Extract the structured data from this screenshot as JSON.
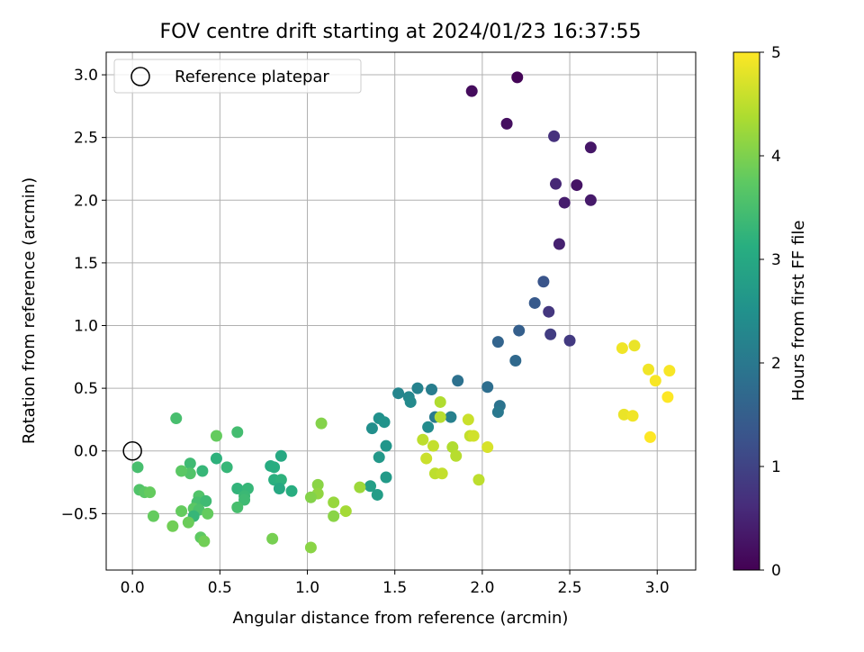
{
  "chart_data": {
    "type": "scatter",
    "title": "FOV centre drift starting at 2024/01/23 16:37:55",
    "xlabel": "Angular distance from reference (arcmin)",
    "ylabel": "Rotation from reference (arcmin)",
    "xlim": [
      -0.15,
      3.22
    ],
    "ylim": [
      -0.95,
      3.18
    ],
    "xticks": [
      0.0,
      0.5,
      1.0,
      1.5,
      2.0,
      2.5,
      3.0
    ],
    "xtick_labels": [
      "0.0",
      "0.5",
      "1.0",
      "1.5",
      "2.0",
      "2.5",
      "3.0"
    ],
    "yticks": [
      -0.5,
      0.0,
      0.5,
      1.0,
      1.5,
      2.0,
      2.5,
      3.0
    ],
    "ytick_labels": [
      "−0.5",
      "0.0",
      "0.5",
      "1.0",
      "1.5",
      "2.0",
      "2.5",
      "3.0"
    ],
    "grid": true,
    "legend": {
      "placement": "top-left",
      "entries": [
        "Reference platepar"
      ]
    },
    "reference_point": {
      "x": 0.0,
      "y": 0.0
    },
    "colorbar": {
      "label": "Hours from first FF file",
      "colormap": "viridis",
      "range": [
        0,
        5
      ],
      "ticks": [
        0,
        1,
        2,
        3,
        4,
        5
      ],
      "tick_labels": [
        "0",
        "1",
        "2",
        "3",
        "4",
        "5"
      ]
    },
    "points": [
      {
        "x": 2.2,
        "y": 2.98,
        "h": 0.05
      },
      {
        "x": 1.94,
        "y": 2.87,
        "h": 0.15
      },
      {
        "x": 2.14,
        "y": 2.61,
        "h": 0.2
      },
      {
        "x": 2.41,
        "y": 2.51,
        "h": 0.7
      },
      {
        "x": 2.62,
        "y": 2.42,
        "h": 0.3
      },
      {
        "x": 2.42,
        "y": 2.13,
        "h": 0.55
      },
      {
        "x": 2.54,
        "y": 2.12,
        "h": 0.25
      },
      {
        "x": 2.47,
        "y": 1.98,
        "h": 0.4
      },
      {
        "x": 2.62,
        "y": 2.0,
        "h": 0.35
      },
      {
        "x": 2.44,
        "y": 1.65,
        "h": 0.45
      },
      {
        "x": 2.35,
        "y": 1.35,
        "h": 1.3
      },
      {
        "x": 2.3,
        "y": 1.18,
        "h": 1.4
      },
      {
        "x": 2.38,
        "y": 1.11,
        "h": 0.8
      },
      {
        "x": 2.21,
        "y": 0.96,
        "h": 1.5
      },
      {
        "x": 2.39,
        "y": 0.93,
        "h": 0.9
      },
      {
        "x": 2.5,
        "y": 0.88,
        "h": 0.85
      },
      {
        "x": 2.09,
        "y": 0.87,
        "h": 1.6
      },
      {
        "x": 2.19,
        "y": 0.72,
        "h": 1.7
      },
      {
        "x": 2.03,
        "y": 0.51,
        "h": 1.8
      },
      {
        "x": 1.86,
        "y": 0.56,
        "h": 1.85
      },
      {
        "x": 2.1,
        "y": 0.36,
        "h": 1.9
      },
      {
        "x": 2.09,
        "y": 0.31,
        "h": 2.0
      },
      {
        "x": 1.71,
        "y": 0.49,
        "h": 2.1
      },
      {
        "x": 1.63,
        "y": 0.5,
        "h": 2.2
      },
      {
        "x": 1.52,
        "y": 0.46,
        "h": 2.25
      },
      {
        "x": 1.58,
        "y": 0.43,
        "h": 2.3
      },
      {
        "x": 1.59,
        "y": 0.39,
        "h": 2.35
      },
      {
        "x": 1.73,
        "y": 0.27,
        "h": 2.05
      },
      {
        "x": 1.82,
        "y": 0.27,
        "h": 2.15
      },
      {
        "x": 1.69,
        "y": 0.19,
        "h": 2.4
      },
      {
        "x": 1.41,
        "y": 0.26,
        "h": 2.5
      },
      {
        "x": 1.44,
        "y": 0.23,
        "h": 2.55
      },
      {
        "x": 1.37,
        "y": 0.18,
        "h": 2.45
      },
      {
        "x": 1.45,
        "y": 0.04,
        "h": 2.6
      },
      {
        "x": 1.41,
        "y": -0.05,
        "h": 2.65
      },
      {
        "x": 1.45,
        "y": -0.21,
        "h": 2.7
      },
      {
        "x": 1.36,
        "y": -0.28,
        "h": 2.8
      },
      {
        "x": 1.4,
        "y": -0.35,
        "h": 2.75
      },
      {
        "x": 0.85,
        "y": -0.04,
        "h": 3.0
      },
      {
        "x": 0.79,
        "y": -0.12,
        "h": 3.05
      },
      {
        "x": 0.81,
        "y": -0.13,
        "h": 3.1
      },
      {
        "x": 0.81,
        "y": -0.23,
        "h": 3.15
      },
      {
        "x": 0.85,
        "y": -0.23,
        "h": 3.2
      },
      {
        "x": 0.84,
        "y": -0.3,
        "h": 3.0
      },
      {
        "x": 0.91,
        "y": -0.32,
        "h": 3.1
      },
      {
        "x": 0.6,
        "y": -0.3,
        "h": 3.25
      },
      {
        "x": 0.66,
        "y": -0.3,
        "h": 3.3
      },
      {
        "x": 0.64,
        "y": -0.36,
        "h": 3.35
      },
      {
        "x": 0.64,
        "y": -0.39,
        "h": 3.4
      },
      {
        "x": 0.6,
        "y": -0.45,
        "h": 3.5
      },
      {
        "x": 0.6,
        "y": 0.15,
        "h": 3.45
      },
      {
        "x": 0.48,
        "y": -0.06,
        "h": 3.2
      },
      {
        "x": 0.54,
        "y": -0.13,
        "h": 3.3
      },
      {
        "x": 0.33,
        "y": -0.1,
        "h": 3.4
      },
      {
        "x": 0.33,
        "y": -0.18,
        "h": 3.6
      },
      {
        "x": 0.4,
        "y": -0.16,
        "h": 3.3
      },
      {
        "x": 0.28,
        "y": -0.16,
        "h": 3.7
      },
      {
        "x": 0.25,
        "y": 0.26,
        "h": 3.5
      },
      {
        "x": 0.48,
        "y": 0.12,
        "h": 3.8
      },
      {
        "x": 0.38,
        "y": -0.36,
        "h": 3.6
      },
      {
        "x": 0.37,
        "y": -0.41,
        "h": 3.5
      },
      {
        "x": 0.42,
        "y": -0.4,
        "h": 3.4
      },
      {
        "x": 0.35,
        "y": -0.46,
        "h": 3.7
      },
      {
        "x": 0.38,
        "y": -0.47,
        "h": 3.55
      },
      {
        "x": 0.35,
        "y": -0.52,
        "h": 3.3
      },
      {
        "x": 0.43,
        "y": -0.5,
        "h": 3.8
      },
      {
        "x": 0.28,
        "y": -0.48,
        "h": 3.8
      },
      {
        "x": 0.32,
        "y": -0.57,
        "h": 3.85
      },
      {
        "x": 0.39,
        "y": -0.69,
        "h": 3.75
      },
      {
        "x": 0.41,
        "y": -0.72,
        "h": 3.9
      },
      {
        "x": 0.23,
        "y": -0.6,
        "h": 3.9
      },
      {
        "x": 0.12,
        "y": -0.52,
        "h": 3.8
      },
      {
        "x": 0.03,
        "y": -0.13,
        "h": 3.5
      },
      {
        "x": 0.04,
        "y": -0.31,
        "h": 3.6
      },
      {
        "x": 0.07,
        "y": -0.33,
        "h": 3.7
      },
      {
        "x": 0.1,
        "y": -0.33,
        "h": 3.8
      },
      {
        "x": 0.8,
        "y": -0.7,
        "h": 3.95
      },
      {
        "x": 1.02,
        "y": -0.77,
        "h": 4.1
      },
      {
        "x": 1.08,
        "y": 0.22,
        "h": 4.05
      },
      {
        "x": 1.06,
        "y": -0.27,
        "h": 4.1
      },
      {
        "x": 1.06,
        "y": -0.34,
        "h": 4.15
      },
      {
        "x": 1.02,
        "y": -0.37,
        "h": 4.05
      },
      {
        "x": 1.15,
        "y": -0.41,
        "h": 4.2
      },
      {
        "x": 1.15,
        "y": -0.52,
        "h": 4.1
      },
      {
        "x": 1.22,
        "y": -0.48,
        "h": 4.3
      },
      {
        "x": 1.3,
        "y": -0.29,
        "h": 4.25
      },
      {
        "x": 1.76,
        "y": 0.39,
        "h": 4.4
      },
      {
        "x": 1.76,
        "y": 0.27,
        "h": 4.45
      },
      {
        "x": 1.66,
        "y": 0.09,
        "h": 4.5
      },
      {
        "x": 1.72,
        "y": 0.04,
        "h": 4.55
      },
      {
        "x": 1.68,
        "y": -0.06,
        "h": 4.6
      },
      {
        "x": 1.73,
        "y": -0.18,
        "h": 4.5
      },
      {
        "x": 1.77,
        "y": -0.18,
        "h": 4.55
      },
      {
        "x": 1.83,
        "y": 0.03,
        "h": 4.4
      },
      {
        "x": 1.85,
        "y": -0.04,
        "h": 4.45
      },
      {
        "x": 1.92,
        "y": 0.25,
        "h": 4.6
      },
      {
        "x": 1.93,
        "y": 0.12,
        "h": 4.55
      },
      {
        "x": 1.95,
        "y": 0.12,
        "h": 4.65
      },
      {
        "x": 1.98,
        "y": -0.23,
        "h": 4.5
      },
      {
        "x": 2.03,
        "y": 0.03,
        "h": 4.7
      },
      {
        "x": 2.8,
        "y": 0.82,
        "h": 4.9
      },
      {
        "x": 2.87,
        "y": 0.84,
        "h": 4.85
      },
      {
        "x": 2.95,
        "y": 0.65,
        "h": 4.9
      },
      {
        "x": 3.07,
        "y": 0.64,
        "h": 4.95
      },
      {
        "x": 2.99,
        "y": 0.56,
        "h": 4.95
      },
      {
        "x": 3.06,
        "y": 0.43,
        "h": 5.0
      },
      {
        "x": 2.81,
        "y": 0.29,
        "h": 4.85
      },
      {
        "x": 2.86,
        "y": 0.28,
        "h": 4.9
      },
      {
        "x": 2.96,
        "y": 0.11,
        "h": 5.0
      }
    ]
  }
}
